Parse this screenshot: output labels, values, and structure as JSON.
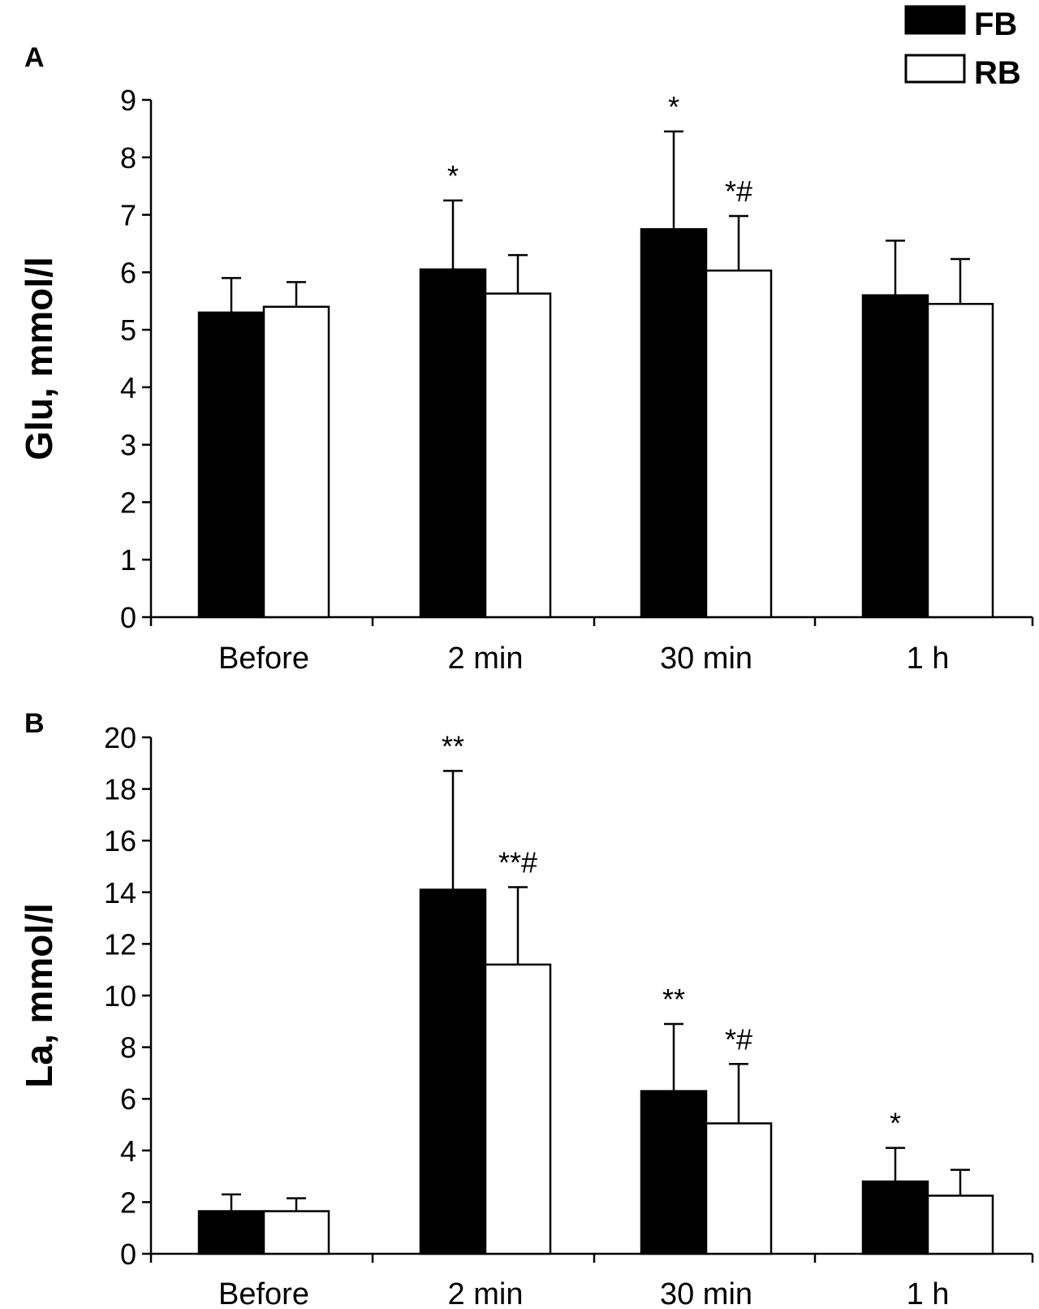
{
  "legend": {
    "placement": "top-right",
    "entries": [
      {
        "name": "FB",
        "color": "#000000"
      },
      {
        "name": "RB",
        "color": "#ffffff"
      }
    ]
  },
  "chart_data": [
    {
      "type": "bar",
      "panel_label": "A",
      "ylabel": "Glu, mmol/l",
      "xlabel": "",
      "categories": [
        "Before",
        "2 min",
        "30 min",
        "1 h"
      ],
      "ylim": [
        0,
        9
      ],
      "yticks": [
        0,
        1,
        2,
        3,
        4,
        5,
        6,
        7,
        8,
        9
      ],
      "series": [
        {
          "name": "FB",
          "color": "#000000",
          "values": [
            5.3,
            6.05,
            6.75,
            5.6
          ],
          "errors": [
            0.6,
            1.2,
            1.7,
            0.95
          ],
          "annotations": [
            "",
            "*",
            "*",
            ""
          ]
        },
        {
          "name": "RB",
          "color": "#ffffff",
          "values": [
            5.4,
            5.63,
            6.03,
            5.45
          ],
          "errors": [
            0.43,
            0.67,
            0.95,
            0.78
          ],
          "annotations": [
            "",
            "",
            "*#",
            ""
          ]
        }
      ]
    },
    {
      "type": "bar",
      "panel_label": "B",
      "ylabel": "La, mmol/l",
      "xlabel": "",
      "categories": [
        "Before",
        "2 min",
        "30 min",
        "1 h"
      ],
      "ylim": [
        0,
        20
      ],
      "yticks": [
        0,
        2,
        4,
        6,
        8,
        10,
        12,
        14,
        16,
        18,
        20
      ],
      "series": [
        {
          "name": "FB",
          "color": "#000000",
          "values": [
            1.65,
            14.1,
            6.3,
            2.8
          ],
          "errors": [
            0.65,
            4.6,
            2.6,
            1.3
          ],
          "annotations": [
            "",
            "**",
            "**",
            "*"
          ]
        },
        {
          "name": "RB",
          "color": "#ffffff",
          "values": [
            1.65,
            11.2,
            5.05,
            2.25
          ],
          "errors": [
            0.5,
            3.0,
            2.3,
            1.0
          ],
          "annotations": [
            "",
            "**#",
            "*#",
            ""
          ]
        }
      ]
    }
  ]
}
